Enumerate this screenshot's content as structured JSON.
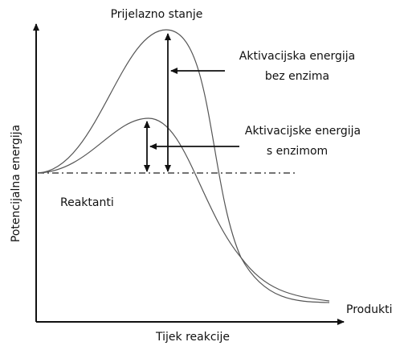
{
  "title": "Prijelazno stanje",
  "annotations": [
    {
      "lines": [
        "Aktivacijska energija",
        "bez enzima"
      ]
    },
    {
      "lines": [
        "Aktivacijske energija",
        "s enzimom"
      ]
    }
  ],
  "reactants_label": "Reaktanti",
  "products_label": "Produkti",
  "x_axis_label": "Tijek reakcije",
  "y_axis_label": "Potencijalna energija"
}
